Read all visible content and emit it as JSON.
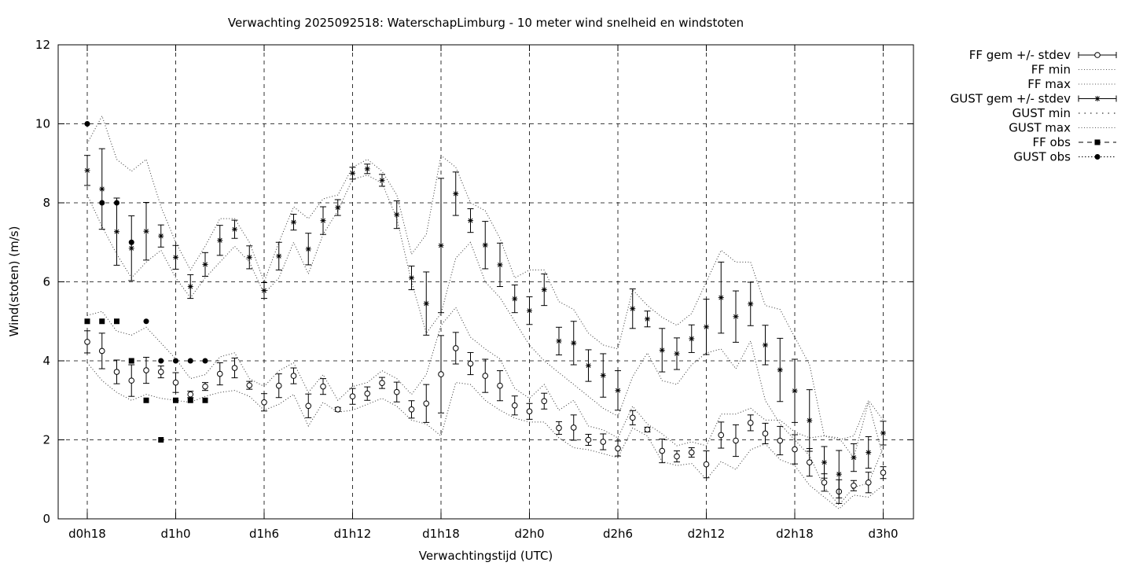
{
  "chart_data": {
    "type": "scatter",
    "title": "Verwachting 2025092518: WaterschapLimburg - 10 meter wind snelheid en windstoten",
    "xlabel": "Verwachtingstijd (UTC)",
    "ylabel": "Wind(stoten) (m/s)",
    "ylim": [
      0,
      12
    ],
    "yticks": [
      0,
      2,
      4,
      6,
      8,
      10,
      12
    ],
    "xlim_hours": [
      -0.1,
      58
    ],
    "xticks": [
      {
        "h": 0,
        "label": "d0h18"
      },
      {
        "h": 6,
        "label": "d1h0"
      },
      {
        "h": 12,
        "label": "d1h6"
      },
      {
        "h": 18,
        "label": "d1h12"
      },
      {
        "h": 24,
        "label": "d1h18"
      },
      {
        "h": 30,
        "label": "d2h0"
      },
      {
        "h": 36,
        "label": "d2h6"
      },
      {
        "h": 42,
        "label": "d2h12"
      },
      {
        "h": 48,
        "label": "d2h18"
      },
      {
        "h": 54,
        "label": "d3h0"
      }
    ],
    "grid": true,
    "legend_position": "outside-right-top",
    "legend": [
      "FF gem +/- stdev",
      "FF min",
      "FF max",
      "GUST gem +/- stdev",
      "GUST min",
      "GUST max",
      "FF obs",
      "GUST obs"
    ],
    "series": {
      "ff_mean": {
        "x": [
          0,
          1,
          2,
          3,
          4,
          5,
          6,
          7,
          8,
          9,
          10,
          11,
          12,
          13,
          14,
          15,
          16,
          17,
          18,
          19,
          20,
          21,
          22,
          23,
          24,
          25,
          26,
          27,
          28,
          29,
          30,
          31,
          32,
          33,
          34,
          35,
          36,
          37,
          38,
          39,
          40,
          41,
          42,
          43,
          44,
          45,
          46,
          47,
          48,
          49,
          50,
          51,
          52,
          53,
          54
        ],
        "mean": [
          4.48,
          4.25,
          3.72,
          3.5,
          3.76,
          3.72,
          3.45,
          3.15,
          3.35,
          3.67,
          3.82,
          3.38,
          2.95,
          3.37,
          3.62,
          2.86,
          3.35,
          2.77,
          3.1,
          3.17,
          3.44,
          3.21,
          2.77,
          2.92,
          3.66,
          4.32,
          3.93,
          3.62,
          3.37,
          2.87,
          2.72,
          2.98,
          2.3,
          2.31,
          2.0,
          1.95,
          1.78,
          2.56,
          2.26,
          1.72,
          1.58,
          1.68,
          1.38,
          2.12,
          1.98,
          2.43,
          2.16,
          1.98,
          1.76,
          1.43,
          0.92,
          0.69,
          0.84,
          0.92,
          1.17
        ],
        "sd": [
          0.28,
          0.45,
          0.3,
          0.4,
          0.33,
          0.15,
          0.25,
          0.08,
          0.1,
          0.28,
          0.25,
          0.1,
          0.22,
          0.3,
          0.2,
          0.3,
          0.2,
          0.05,
          0.2,
          0.17,
          0.14,
          0.25,
          0.22,
          0.48,
          0.98,
          0.4,
          0.28,
          0.42,
          0.38,
          0.24,
          0.2,
          0.2,
          0.16,
          0.32,
          0.14,
          0.2,
          0.19,
          0.18,
          0.06,
          0.3,
          0.14,
          0.12,
          0.34,
          0.33,
          0.4,
          0.2,
          0.26,
          0.36,
          0.37,
          0.35,
          0.22,
          0.3,
          0.13,
          0.26,
          0.15
        ]
      },
      "ff_min": {
        "x": [
          0,
          1,
          2,
          3,
          4,
          5,
          6,
          7,
          8,
          9,
          10,
          11,
          12,
          13,
          14,
          15,
          16,
          17,
          18,
          19,
          20,
          21,
          22,
          23,
          24,
          25,
          26,
          27,
          28,
          29,
          30,
          31,
          32,
          33,
          34,
          35,
          36,
          37,
          38,
          39,
          40,
          41,
          42,
          43,
          44,
          45,
          46,
          47,
          48,
          49,
          50,
          51,
          52,
          53,
          54
        ],
        "values": [
          3.95,
          3.5,
          3.2,
          3.0,
          3.15,
          3.05,
          3.0,
          2.95,
          3.1,
          3.2,
          3.25,
          3.1,
          2.75,
          2.9,
          3.15,
          2.35,
          2.95,
          2.7,
          2.75,
          2.9,
          3.05,
          2.85,
          2.5,
          2.4,
          2.1,
          3.45,
          3.4,
          3.0,
          2.75,
          2.55,
          2.45,
          2.45,
          2.05,
          1.8,
          1.75,
          1.65,
          1.55,
          2.3,
          2.1,
          1.45,
          1.35,
          1.4,
          1.0,
          1.45,
          1.25,
          1.75,
          1.9,
          1.5,
          1.35,
          0.85,
          0.55,
          0.25,
          0.6,
          0.55,
          0.85
        ]
      },
      "ff_max": {
        "x": [
          0,
          1,
          2,
          3,
          4,
          5,
          6,
          7,
          8,
          9,
          10,
          11,
          12,
          13,
          14,
          15,
          16,
          17,
          18,
          19,
          20,
          21,
          22,
          23,
          24,
          25,
          26,
          27,
          28,
          29,
          30,
          31,
          32,
          33,
          34,
          35,
          36,
          37,
          38,
          39,
          40,
          41,
          42,
          43,
          44,
          45,
          46,
          47,
          48,
          49,
          50,
          51,
          52,
          53,
          54
        ],
        "values": [
          5.15,
          5.25,
          4.75,
          4.65,
          4.85,
          4.45,
          4.05,
          3.55,
          3.65,
          4.1,
          4.2,
          3.55,
          3.35,
          3.75,
          3.95,
          3.2,
          3.65,
          3.0,
          3.35,
          3.45,
          3.75,
          3.55,
          3.15,
          3.65,
          4.9,
          5.35,
          4.6,
          4.3,
          4.05,
          3.3,
          3.05,
          3.4,
          2.75,
          3.0,
          2.35,
          2.25,
          2.05,
          2.85,
          2.4,
          2.15,
          1.85,
          1.95,
          1.85,
          2.65,
          2.65,
          2.8,
          2.5,
          2.5,
          2.2,
          2.05,
          2.1,
          2.05,
          1.55,
          2.95,
          1.55
        ]
      },
      "gust_mean": {
        "x": [
          0,
          1,
          2,
          3,
          4,
          5,
          6,
          7,
          8,
          9,
          10,
          11,
          12,
          13,
          14,
          15,
          16,
          17,
          18,
          19,
          20,
          21,
          22,
          23,
          24,
          25,
          26,
          27,
          28,
          29,
          30,
          31,
          32,
          33,
          34,
          35,
          36,
          37,
          38,
          39,
          40,
          41,
          42,
          43,
          44,
          45,
          46,
          47,
          48,
          49,
          50,
          51,
          52,
          53,
          54
        ],
        "mean": [
          8.82,
          8.35,
          7.27,
          6.85,
          7.28,
          7.16,
          6.62,
          5.88,
          6.44,
          7.05,
          7.33,
          6.62,
          5.78,
          6.65,
          7.51,
          6.83,
          7.55,
          7.88,
          8.75,
          8.86,
          8.57,
          7.7,
          6.1,
          5.45,
          6.92,
          8.23,
          7.55,
          6.93,
          6.43,
          5.57,
          5.27,
          5.8,
          4.5,
          4.45,
          3.88,
          3.63,
          3.25,
          5.32,
          5.06,
          4.27,
          4.18,
          4.56,
          4.86,
          5.6,
          5.12,
          5.44,
          4.4,
          3.77,
          3.24,
          2.49,
          1.43,
          1.13,
          1.55,
          1.68,
          2.17
        ]
      },
      "gust_sd": {
        "x": [
          0,
          1,
          2,
          3,
          4,
          5,
          6,
          7,
          8,
          9,
          10,
          11,
          12,
          13,
          14,
          15,
          16,
          17,
          18,
          19,
          20,
          21,
          22,
          23,
          24,
          25,
          26,
          27,
          28,
          29,
          30,
          31,
          32,
          33,
          34,
          35,
          36,
          37,
          38,
          39,
          40,
          41,
          42,
          43,
          44,
          45,
          46,
          47,
          48,
          49,
          50,
          51,
          52,
          53,
          54
        ],
        "values": [
          0.38,
          1.02,
          0.85,
          0.82,
          0.73,
          0.28,
          0.3,
          0.3,
          0.3,
          0.38,
          0.23,
          0.29,
          0.2,
          0.35,
          0.2,
          0.4,
          0.35,
          0.2,
          0.15,
          0.12,
          0.15,
          0.35,
          0.3,
          0.8,
          1.7,
          0.55,
          0.3,
          0.6,
          0.55,
          0.35,
          0.35,
          0.4,
          0.35,
          0.55,
          0.4,
          0.55,
          0.5,
          0.5,
          0.2,
          0.55,
          0.4,
          0.35,
          0.7,
          0.9,
          0.65,
          0.55,
          0.5,
          0.8,
          0.8,
          0.78,
          0.4,
          0.6,
          0.35,
          0.4,
          0.3
        ]
      },
      "gust_min": {
        "x": [
          0,
          1,
          2,
          3,
          4,
          5,
          6,
          7,
          8,
          9,
          10,
          11,
          12,
          13,
          14,
          15,
          16,
          17,
          18,
          19,
          20,
          21,
          22,
          23,
          24,
          25,
          26,
          27,
          28,
          29,
          30,
          31,
          32,
          33,
          34,
          35,
          36,
          37,
          38,
          39,
          40,
          41,
          42,
          43,
          44,
          45,
          46,
          47,
          48,
          49,
          50,
          51,
          52,
          53,
          54
        ],
        "values": [
          8.2,
          7.4,
          6.7,
          6.1,
          6.5,
          6.8,
          6.1,
          5.6,
          6.1,
          6.5,
          6.9,
          6.5,
          5.7,
          6.1,
          7.0,
          6.2,
          7.2,
          7.8,
          8.6,
          8.7,
          8.5,
          7.6,
          6.0,
          4.7,
          5.2,
          6.6,
          7.0,
          6.0,
          5.6,
          5.0,
          4.4,
          4.0,
          3.7,
          3.4,
          3.1,
          2.8,
          2.6,
          3.6,
          4.2,
          3.5,
          3.4,
          3.9,
          4.2,
          4.3,
          3.8,
          4.5,
          3.0,
          2.4,
          2.0,
          1.6,
          0.8,
          0.35,
          0.8,
          0.9,
          1.8
        ]
      },
      "gust_max": {
        "x": [
          0,
          1,
          2,
          3,
          4,
          5,
          6,
          7,
          8,
          9,
          10,
          11,
          12,
          13,
          14,
          15,
          16,
          17,
          18,
          19,
          20,
          21,
          22,
          23,
          24,
          25,
          26,
          27,
          28,
          29,
          30,
          31,
          32,
          33,
          34,
          35,
          36,
          37,
          38,
          39,
          40,
          41,
          42,
          43,
          44,
          45,
          46,
          47,
          48,
          49,
          50,
          51,
          52,
          53,
          54
        ],
        "values": [
          9.5,
          10.2,
          9.1,
          8.8,
          9.1,
          7.9,
          7.0,
          6.3,
          6.9,
          7.6,
          7.6,
          7.0,
          6.0,
          7.0,
          7.9,
          7.6,
          8.1,
          8.2,
          8.9,
          9.1,
          8.8,
          8.2,
          6.7,
          7.2,
          9.2,
          8.9,
          8.0,
          7.8,
          7.1,
          6.1,
          6.3,
          6.3,
          5.5,
          5.3,
          4.7,
          4.4,
          4.3,
          5.8,
          5.4,
          5.1,
          4.9,
          5.2,
          6.0,
          6.8,
          6.5,
          6.5,
          5.4,
          5.3,
          4.6,
          3.9,
          2.1,
          2.0,
          2.1,
          3.0,
          2.5
        ]
      },
      "ff_obs": {
        "x": [
          0,
          1,
          2,
          3,
          4,
          5,
          6,
          7,
          8
        ],
        "values": [
          5,
          5,
          5,
          4,
          3,
          2,
          3,
          3,
          3
        ]
      },
      "gust_obs": {
        "x": [
          0,
          1,
          2,
          3,
          4,
          5,
          6,
          7,
          8
        ],
        "values": [
          10,
          8,
          8,
          7,
          5,
          4,
          4,
          4,
          4
        ]
      }
    }
  }
}
